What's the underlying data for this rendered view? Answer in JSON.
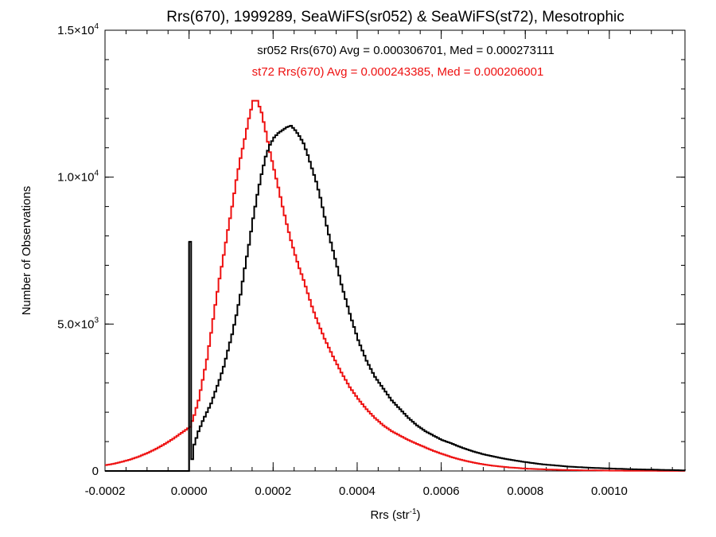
{
  "chart_data": {
    "type": "line",
    "title": "Rrs(670), 1999289, SeaWiFS(sr052) & SeaWiFS(st72), Mesotrophic",
    "xlabel": "Rrs (str",
    "xlabel_sup": "-1",
    "xlabel_close": ")",
    "ylabel": "Number of Observations",
    "xlim": [
      -0.0002,
      0.00118
    ],
    "ylim": [
      0,
      15000
    ],
    "x_ticks": [
      {
        "value": -0.0002,
        "label": "-0.0002"
      },
      {
        "value": 0.0,
        "label": "0.0000"
      },
      {
        "value": 0.0002,
        "label": "0.0002"
      },
      {
        "value": 0.0004,
        "label": "0.0004"
      },
      {
        "value": 0.0006,
        "label": "0.0006"
      },
      {
        "value": 0.0008,
        "label": "0.0008"
      },
      {
        "value": 0.001,
        "label": "0.0010"
      }
    ],
    "x_minor_step": 5e-05,
    "y_ticks": [
      {
        "value": 0,
        "mant": "0",
        "exp": ""
      },
      {
        "value": 5000,
        "mant": "5.0×10",
        "exp": "3"
      },
      {
        "value": 10000,
        "mant": "1.0×10",
        "exp": "4"
      },
      {
        "value": 15000,
        "mant": "1.5×10",
        "exp": "4"
      }
    ],
    "y_minor_step": 1000,
    "annotations": [
      {
        "text": "sr052 Rrs(670) Avg = 0.000306701, Med = 0.000273111",
        "color": "#000000"
      },
      {
        "text": "st72 Rrs(670) Avg = 0.000243385, Med = 0.000206001",
        "color": "#ee1111"
      }
    ],
    "grid": false,
    "series": [
      {
        "name": "sr052",
        "color": "#000000",
        "x": [
          -0.0002,
          -1e-06,
          0.0,
          1e-06,
          1e-05,
          2e-05,
          3e-05,
          4e-05,
          5e-05,
          6e-05,
          7e-05,
          8e-05,
          9e-05,
          0.0001,
          0.00011,
          0.00012,
          0.00013,
          0.00014,
          0.00015,
          0.00016,
          0.00017,
          0.00018,
          0.00019,
          0.0002,
          0.00021,
          0.00022,
          0.00023,
          0.00024,
          0.00025,
          0.00026,
          0.00027,
          0.00028,
          0.00029,
          0.0003,
          0.00031,
          0.00032,
          0.00033,
          0.00034,
          0.00035,
          0.00036,
          0.00037,
          0.00038,
          0.00039,
          0.0004,
          0.00042,
          0.00044,
          0.00046,
          0.00048,
          0.0005,
          0.00052,
          0.00054,
          0.00056,
          0.00058,
          0.0006,
          0.00062,
          0.00064,
          0.00066,
          0.00068,
          0.0007,
          0.00072,
          0.00074,
          0.00076,
          0.00078,
          0.0008,
          0.00082,
          0.00084,
          0.00086,
          0.00088,
          0.0009,
          0.00095,
          0.001,
          0.00105,
          0.0011,
          0.00115,
          0.00118
        ],
        "y": [
          0,
          0,
          7800,
          0,
          900,
          1350,
          1700,
          2000,
          2300,
          2700,
          3100,
          3550,
          4100,
          4650,
          5300,
          6000,
          6900,
          7700,
          8600,
          9400,
          10100,
          10700,
          11100,
          11350,
          11500,
          11600,
          11700,
          11750,
          11600,
          11400,
          11150,
          10750,
          10300,
          9850,
          9300,
          8650,
          8050,
          7500,
          6950,
          6350,
          5850,
          5350,
          4900,
          4450,
          3750,
          3200,
          2800,
          2400,
          2100,
          1800,
          1550,
          1350,
          1200,
          1050,
          950,
          830,
          730,
          640,
          560,
          500,
          440,
          390,
          340,
          300,
          260,
          225,
          200,
          175,
          150,
          110,
          85,
          60,
          45,
          30,
          20
        ]
      },
      {
        "name": "st72",
        "color": "#ee1111",
        "x": [
          -0.0002,
          -0.00018,
          -0.00016,
          -0.00014,
          -0.00012,
          -0.0001,
          -8e-05,
          -6e-05,
          -4e-05,
          -2e-05,
          0.0,
          1e-05,
          2e-05,
          3e-05,
          4e-05,
          5e-05,
          6e-05,
          7e-05,
          8e-05,
          9e-05,
          0.0001,
          0.00011,
          0.00012,
          0.00013,
          0.00014,
          0.00015,
          0.00016,
          0.00017,
          0.00018,
          0.00019,
          0.0002,
          0.00021,
          0.00022,
          0.00023,
          0.00024,
          0.00025,
          0.00026,
          0.00027,
          0.00028,
          0.00029,
          0.0003,
          0.00031,
          0.00032,
          0.00034,
          0.00036,
          0.00038,
          0.0004,
          0.00042,
          0.00044,
          0.00046,
          0.00048,
          0.0005,
          0.00052,
          0.00054,
          0.00056,
          0.00058,
          0.0006,
          0.00062,
          0.00064,
          0.00066,
          0.00068,
          0.0007,
          0.00072,
          0.00074,
          0.00076,
          0.00078,
          0.0008,
          0.00085,
          0.0009,
          0.00095,
          0.001,
          0.00105,
          0.0011,
          0.00115,
          0.00118
        ],
        "y": [
          200,
          250,
          320,
          400,
          500,
          620,
          760,
          920,
          1100,
          1300,
          1500,
          1900,
          2400,
          3100,
          3800,
          4700,
          5650,
          6550,
          7350,
          8200,
          9000,
          9900,
          10650,
          11300,
          12000,
          12600,
          12600,
          12200,
          11550,
          10850,
          10250,
          9650,
          9000,
          8400,
          7850,
          7350,
          6900,
          6500,
          6050,
          5600,
          5200,
          4850,
          4500,
          3900,
          3350,
          2850,
          2450,
          2100,
          1800,
          1550,
          1350,
          1200,
          1050,
          920,
          800,
          680,
          580,
          480,
          400,
          330,
          270,
          220,
          180,
          150,
          120,
          100,
          80,
          50,
          30,
          20,
          12,
          8,
          5,
          3,
          2
        ]
      }
    ]
  }
}
